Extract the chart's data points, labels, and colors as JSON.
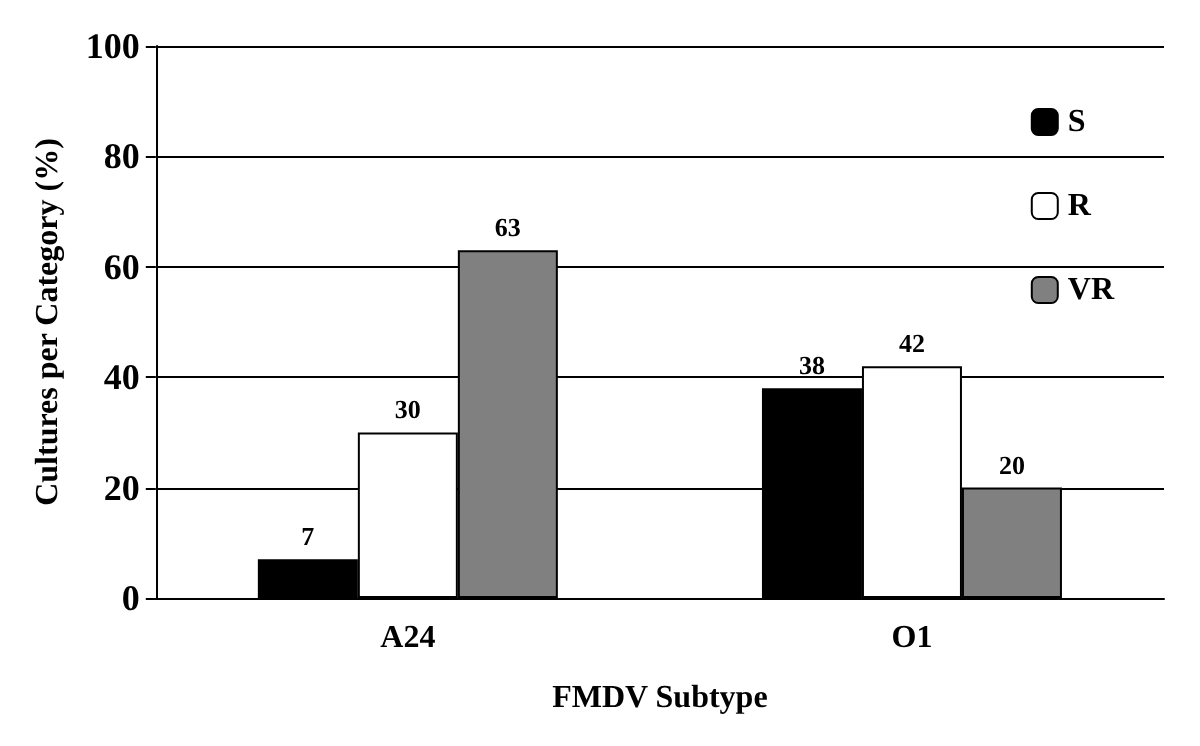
{
  "chart_data": {
    "type": "bar",
    "xlabel": "FMDV Subtype",
    "ylabel": "Cultures per Category (%)",
    "categories": [
      "A24",
      "O1"
    ],
    "series": [
      {
        "name": "S",
        "color": "#000000",
        "values": [
          7,
          38
        ]
      },
      {
        "name": "R",
        "color": "#ffffff",
        "values": [
          30,
          42
        ]
      },
      {
        "name": "VR",
        "color": "#808080",
        "values": [
          63,
          20
        ]
      }
    ],
    "ylim": [
      0,
      100
    ],
    "yticks": [
      0,
      20,
      40,
      60,
      80,
      100
    ],
    "grid": "y",
    "legend": "top right",
    "data_labels": true
  }
}
